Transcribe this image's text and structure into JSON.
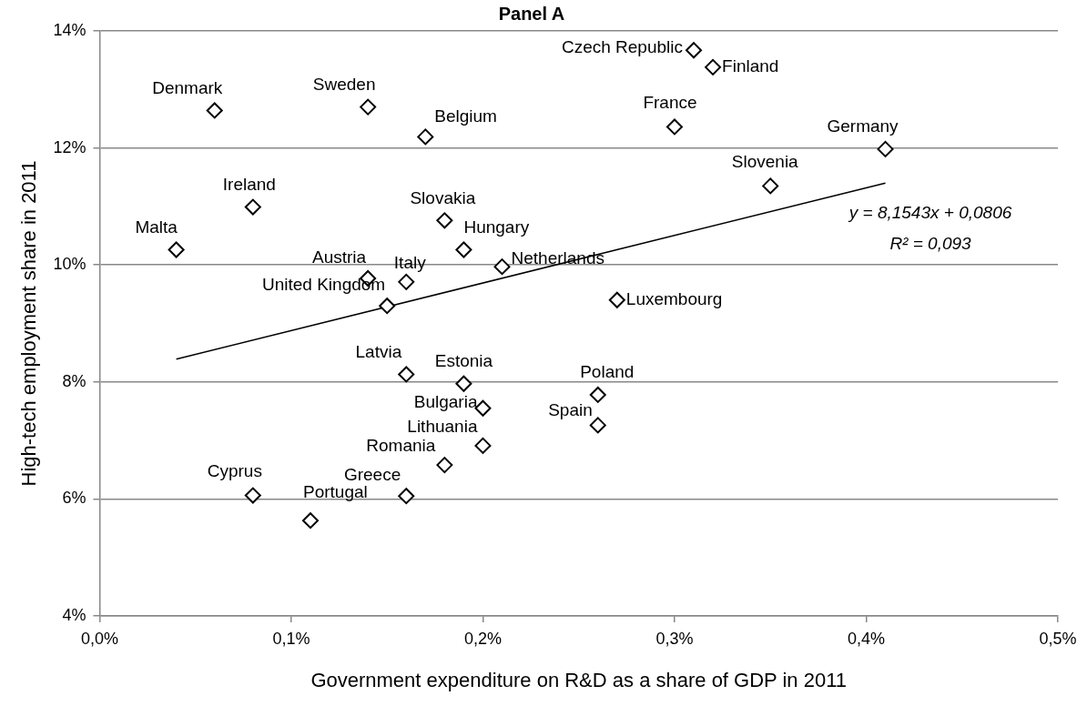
{
  "chart_data": {
    "type": "scatter",
    "title": "Panel A",
    "xlabel": "Government expenditure on R&D as a share of GDP in 2011",
    "ylabel": "High-tech employment share in 2011",
    "xlim": [
      0,
      0.5
    ],
    "ylim": [
      4,
      14
    ],
    "xticks": [
      {
        "value": 0,
        "label": "0,0%"
      },
      {
        "value": 0.1,
        "label": "0,1%"
      },
      {
        "value": 0.2,
        "label": "0,2%"
      },
      {
        "value": 0.3,
        "label": "0,3%"
      },
      {
        "value": 0.4,
        "label": "0,4%"
      },
      {
        "value": 0.5,
        "label": "0,5%"
      }
    ],
    "yticks": [
      {
        "value": 4,
        "label": "4%"
      },
      {
        "value": 6,
        "label": "6%"
      },
      {
        "value": 8,
        "label": "8%"
      },
      {
        "value": 10,
        "label": "10%"
      },
      {
        "value": 12,
        "label": "12%"
      },
      {
        "value": 14,
        "label": "14%"
      }
    ],
    "grid": "y",
    "legend": false,
    "marker": "diamond",
    "series": [
      {
        "type": "scatter",
        "color": "#000000",
        "x": [
          0.06,
          0.14,
          0.17,
          0.08,
          0.04,
          0.18,
          0.19,
          0.21,
          0.14,
          0.16,
          0.15,
          0.31,
          0.32,
          0.3,
          0.41,
          0.35,
          0.27,
          0.16,
          0.19,
          0.2,
          0.2,
          0.18,
          0.08,
          0.16,
          0.11,
          0.26,
          0.26
        ],
        "values": [
          12.64,
          12.7,
          12.19,
          10.99,
          10.26,
          10.76,
          10.26,
          9.97,
          9.77,
          9.71,
          9.3,
          13.67,
          13.38,
          12.36,
          11.98,
          11.35,
          9.4,
          8.13,
          7.97,
          7.55,
          6.91,
          6.58,
          6.06,
          6.05,
          5.63,
          7.78,
          7.26
        ]
      },
      {
        "type": "line",
        "color": "#000000",
        "marker": "none",
        "x": [
          0.04,
          0.41
        ],
        "values": [
          8.39,
          11.4
        ]
      }
    ],
    "annotations": [
      {
        "text": "Denmark",
        "x": 0.06,
        "y": 12.64
      },
      {
        "text": "Sweden",
        "x": 0.14,
        "y": 12.7
      },
      {
        "text": "Belgium",
        "x": 0.17,
        "y": 12.19
      },
      {
        "text": "Ireland",
        "x": 0.08,
        "y": 10.99
      },
      {
        "text": "Malta",
        "x": 0.04,
        "y": 10.26
      },
      {
        "text": "Slovakia",
        "x": 0.18,
        "y": 10.76
      },
      {
        "text": "Hungary",
        "x": 0.19,
        "y": 10.26
      },
      {
        "text": "Netherlands",
        "x": 0.21,
        "y": 9.97
      },
      {
        "text": "Austria",
        "x": 0.14,
        "y": 9.77
      },
      {
        "text": "Italy",
        "x": 0.16,
        "y": 9.71
      },
      {
        "text": "United Kingdom",
        "x": 0.15,
        "y": 9.3
      },
      {
        "text": "Czech Republic",
        "x": 0.31,
        "y": 13.67
      },
      {
        "text": "Finland",
        "x": 0.32,
        "y": 13.38
      },
      {
        "text": "France",
        "x": 0.3,
        "y": 12.36
      },
      {
        "text": "Germany",
        "x": 0.41,
        "y": 11.98
      },
      {
        "text": "Slovenia",
        "x": 0.35,
        "y": 11.35
      },
      {
        "text": "Luxembourg",
        "x": 0.27,
        "y": 9.4
      },
      {
        "text": "Latvia",
        "x": 0.16,
        "y": 8.13
      },
      {
        "text": "Estonia",
        "x": 0.19,
        "y": 7.97
      },
      {
        "text": "Bulgaria",
        "x": 0.2,
        "y": 7.55
      },
      {
        "text": "Lithuania",
        "x": 0.2,
        "y": 6.91
      },
      {
        "text": "Romania",
        "x": 0.18,
        "y": 6.58
      },
      {
        "text": "Cyprus",
        "x": 0.08,
        "y": 6.06
      },
      {
        "text": "Greece",
        "x": 0.16,
        "y": 6.05
      },
      {
        "text": "Portugal",
        "x": 0.11,
        "y": 5.63
      },
      {
        "text": "Poland",
        "x": 0.26,
        "y": 7.78
      },
      {
        "text": "Spain",
        "x": 0.26,
        "y": 7.26
      },
      "y = 8,1543x + 0,0806",
      "R² = 0,093"
    ]
  }
}
